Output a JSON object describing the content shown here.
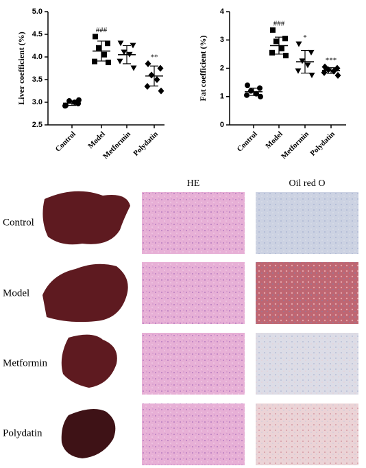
{
  "chart_data": [
    {
      "type": "dot",
      "ylabel": "Liver coefficient (%)",
      "categories": [
        "Control",
        "Model",
        "Metformin",
        "Polydatin"
      ],
      "markers": [
        "circle",
        "square",
        "triangle",
        "diamond"
      ],
      "values": [
        [
          2.93,
          2.97,
          3.03,
          3.0,
          2.92,
          3.05
        ],
        [
          4.45,
          4.3,
          4.2,
          4.05,
          3.9,
          3.88
        ],
        [
          4.3,
          4.25,
          4.1,
          4.05,
          3.9,
          3.75
        ],
        [
          3.85,
          3.75,
          3.6,
          3.5,
          3.35,
          3.25
        ]
      ],
      "mean": [
        2.98,
        4.13,
        4.05,
        3.58
      ],
      "sd": [
        0.05,
        0.22,
        0.2,
        0.22
      ],
      "annotations": [
        null,
        "###",
        null,
        "**"
      ],
      "color": "#000000",
      "ylim": [
        2.5,
        5.0
      ],
      "yticks": [
        2.5,
        {
          "value": 3,
          "label": "3.0"
        },
        3.5,
        {
          "value": 4,
          "label": "4.0"
        },
        4.5,
        {
          "value": 5,
          "label": "5.0"
        }
      ]
    },
    {
      "type": "dot",
      "ylabel": "Fat coefficient (%)",
      "categories": [
        "Control",
        "Model",
        "Metformin",
        "Polydatin"
      ],
      "markers": [
        "circle",
        "square",
        "triangle",
        "diamond"
      ],
      "values": [
        [
          1.4,
          1.3,
          1.2,
          1.1,
          1.05,
          1.0
        ],
        [
          3.35,
          3.05,
          2.95,
          2.7,
          2.55,
          2.45
        ],
        [
          2.85,
          2.55,
          2.25,
          2.1,
          1.9,
          1.75
        ],
        [
          2.05,
          2.0,
          1.95,
          1.9,
          1.85,
          1.75
        ]
      ],
      "mean": [
        1.17,
        2.8,
        2.23,
        1.92
      ],
      "sd": [
        0.13,
        0.3,
        0.4,
        0.1
      ],
      "annotations": [
        null,
        "###",
        "*",
        "***"
      ],
      "color": "#000000",
      "ylim": [
        0,
        4
      ],
      "yticks": [
        0,
        1,
        2,
        3,
        4
      ]
    }
  ],
  "image_panel": {
    "columns": [
      "HE",
      "Oil red O"
    ],
    "rows": [
      "Control",
      "Model",
      "Metformin",
      "Polydatin"
    ]
  }
}
